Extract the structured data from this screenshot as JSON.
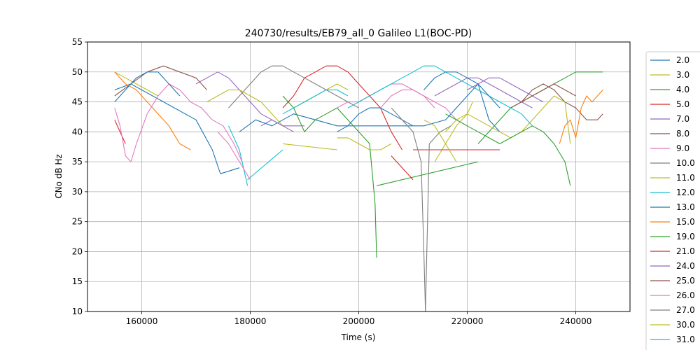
{
  "chart_data": {
    "type": "line",
    "title": "240730/results/EB79_all_0 Galileo L1(BOC-PD)",
    "xlabel": "Time (s)",
    "ylabel": "CNo dB Hz",
    "xlim": [
      150000,
      250000
    ],
    "ylim": [
      10,
      55
    ],
    "xticks": [
      160000,
      180000,
      200000,
      220000,
      240000
    ],
    "yticks": [
      10,
      15,
      20,
      25,
      30,
      35,
      40,
      45,
      50,
      55
    ],
    "grid": true,
    "legend_position": "right",
    "series": [
      {
        "name": "2.0",
        "color": "#1f77b4",
        "segments": [
          {
            "x": [
              155000,
              158000,
              162000,
              166000,
              170000,
              173000,
              174500
            ],
            "y": [
              47,
              48,
              46,
              44,
              42,
              37,
              33
            ]
          },
          {
            "x": [
              174500,
              178000
            ],
            "y": [
              33,
              34
            ]
          },
          {
            "x": [
              178000,
              181000,
              184000,
              188000,
              192000,
              196000,
              200000,
              204000,
              208000,
              212000,
              216000,
              220000,
              222000,
              224000,
              226000
            ],
            "y": [
              40,
              42,
              41,
              43,
              42,
              41,
              41,
              41,
              41,
              41,
              42,
              46,
              48,
              42,
              40
            ]
          }
        ]
      },
      {
        "name": "3.0",
        "color": "#bcbd22",
        "segments": [
          {
            "x": [
              155000,
              157000,
              159000,
              161000,
              163000
            ],
            "y": [
              50,
              49,
              48,
              47,
              46
            ]
          },
          {
            "x": [
              214000,
              216000,
              218000,
              220000,
              221000
            ],
            "y": [
              35,
              38,
              41,
              43,
              45
            ]
          }
        ]
      },
      {
        "name": "4.0",
        "color": "#2ca02c",
        "segments": [
          {
            "x": [
              186000,
              188000,
              190000,
              192000,
              194000,
              196000,
              198000,
              200000,
              202000,
              203000,
              203300
            ],
            "y": [
              46,
              44,
              40,
              42,
              43,
              44,
              42,
              40,
              38,
              28,
              19
            ]
          },
          {
            "x": [
              203300,
              222000
            ],
            "y": [
              31,
              35
            ]
          },
          {
            "x": [
              222000,
              224000,
              226000,
              228000,
              230000,
              232000,
              234000,
              236000,
              238000,
              240000,
              242000,
              244000,
              245000
            ],
            "y": [
              38,
              40,
              42,
              44,
              45,
              46,
              47,
              48,
              49,
              50,
              50,
              50,
              50
            ]
          }
        ]
      },
      {
        "name": "5.0",
        "color": "#d62728",
        "segments": [
          {
            "x": [
              155000,
              156000,
              157000
            ],
            "y": [
              42,
              40,
              38
            ]
          },
          {
            "x": [
              186000,
              188000,
              190000,
              192000,
              194000,
              196000,
              198000,
              200000,
              202000,
              204000,
              206000,
              208000
            ],
            "y": [
              44,
              46,
              49,
              50,
              51,
              51,
              50,
              48,
              46,
              44,
              40,
              37
            ]
          }
        ]
      },
      {
        "name": "7.0",
        "color": "#9467bd",
        "segments": [
          {
            "x": [
              170000,
              172000,
              174000,
              176000,
              178000,
              180000,
              182000,
              184000,
              186000,
              188000,
              190000
            ],
            "y": [
              48,
              49,
              50,
              49,
              47,
              45,
              43,
              42,
              41,
              41,
              41
            ]
          },
          {
            "x": [
              214000,
              216000,
              218000,
              220000,
              222000,
              224000,
              226000,
              228000,
              230000,
              232000
            ],
            "y": [
              46,
              47,
              48,
              49,
              49,
              48,
              47,
              46,
              45,
              44
            ]
          }
        ]
      },
      {
        "name": "8.0",
        "color": "#8c564b",
        "segments": [
          {
            "x": [
              155000,
              158000,
              161000,
              164000,
              167000,
              170000,
              172000
            ],
            "y": [
              46,
              48,
              50,
              51,
              50,
              49,
              47
            ]
          },
          {
            "x": [
              228000,
              230000,
              232000,
              234000,
              236000,
              238000,
              240000,
              242000,
              244000,
              245000
            ],
            "y": [
              44,
              45,
              47,
              48,
              47,
              45,
              44,
              42,
              42,
              43
            ]
          }
        ]
      },
      {
        "name": "9.0",
        "color": "#e377c2",
        "segments": [
          {
            "x": [
              155000,
              156000,
              157000,
              158000,
              159000,
              161000,
              163000,
              165000,
              167000,
              169000,
              171000,
              173000,
              175000,
              177000,
              178500
            ],
            "y": [
              44,
              41,
              36,
              35,
              38,
              43,
              46,
              48,
              47,
              45,
              44,
              42,
              41,
              38,
              35
            ]
          },
          {
            "x": [
              196000,
              198000,
              200000,
              202000,
              204000,
              206000,
              208000,
              210000,
              212000,
              214000,
              216000,
              218000,
              220000
            ],
            "y": [
              44,
              45,
              45,
              46,
              47,
              48,
              48,
              47,
              46,
              45,
              44,
              42,
              41
            ]
          }
        ]
      },
      {
        "name": "10.0",
        "color": "#7f7f7f",
        "segments": [
          {
            "x": [
              176000,
              178000,
              180000,
              182000,
              184000,
              186000,
              188000,
              190000,
              192000,
              194000,
              196000,
              198000,
              200000
            ],
            "y": [
              44,
              46,
              48,
              50,
              51,
              51,
              50,
              49,
              48,
              47,
              46,
              45,
              44
            ]
          }
        ]
      },
      {
        "name": "11.0",
        "color": "#bcbd22",
        "segments": [
          {
            "x": [
              172000,
              174000,
              176000,
              178000,
              180000,
              182000,
              184000,
              186000
            ],
            "y": [
              45,
              46,
              47,
              47,
              46,
              45,
              43,
              41
            ]
          },
          {
            "x": [
              186000,
              196000
            ],
            "y": [
              38,
              37
            ]
          },
          {
            "x": [
              196000,
              198000,
              200000,
              202000,
              204000,
              206000
            ],
            "y": [
              39,
              39,
              38,
              37,
              37,
              38
            ]
          },
          {
            "x": [
              216000,
              218000,
              220000,
              222000,
              224000,
              226000,
              228000,
              230000,
              232000,
              234000,
              236000,
              238000,
              239000
            ],
            "y": [
              40,
              42,
              43,
              42,
              41,
              40,
              39,
              40,
              42,
              44,
              46,
              45,
              38
            ]
          }
        ]
      },
      {
        "name": "12.0",
        "color": "#17becf",
        "segments": [
          {
            "x": [
              176000,
              178000,
              179500
            ],
            "y": [
              41,
              37,
              31
            ]
          },
          {
            "x": [
              179500,
              186000
            ],
            "y": [
              32,
              37
            ]
          },
          {
            "x": [
              198000,
              200000,
              202000,
              204000,
              206000,
              208000,
              210000,
              212000,
              214000,
              216000,
              218000,
              220000,
              222000,
              224000,
              226000,
              228000,
              230000,
              232000
            ],
            "y": [
              44,
              45,
              46,
              47,
              48,
              49,
              50,
              51,
              51,
              50,
              49,
              48,
              47,
              46,
              45,
              44,
              43,
              41
            ]
          }
        ]
      },
      {
        "name": "13.0",
        "color": "#1f77b4",
        "segments": [
          {
            "x": [
              155000,
              157000,
              159000,
              161000,
              163000,
              165000,
              167000
            ],
            "y": [
              45,
              47,
              49,
              50,
              50,
              48,
              46
            ]
          },
          {
            "x": [
              196000,
              198000,
              200000,
              202000,
              204000,
              206000,
              208000,
              210000
            ],
            "y": [
              40,
              41,
              43,
              44,
              44,
              43,
              42,
              41
            ]
          },
          {
            "x": [
              212000,
              214000,
              216000,
              218000,
              220000,
              222000,
              224000,
              226000
            ],
            "y": [
              47,
              49,
              50,
              50,
              49,
              48,
              46,
              44
            ]
          }
        ]
      },
      {
        "name": "15.0",
        "color": "#ff7f0e",
        "segments": [
          {
            "x": [
              155000,
              157000,
              159000,
              161000,
              163000,
              165000,
              167000,
              169000
            ],
            "y": [
              50,
              48,
              47,
              45,
              43,
              41,
              38,
              37
            ]
          },
          {
            "x": [
              237000,
              238000,
              239000,
              240000,
              241000,
              242000,
              243000,
              244000,
              245000
            ],
            "y": [
              38,
              41,
              42,
              39,
              44,
              46,
              45,
              46,
              47
            ]
          }
        ]
      },
      {
        "name": "19.0",
        "color": "#2ca02c",
        "segments": [
          {
            "x": [
              216000,
              218000,
              220000,
              222000,
              224000,
              226000,
              228000,
              230000,
              232000,
              234000,
              236000,
              238000,
              239000
            ],
            "y": [
              43,
              42,
              41,
              40,
              39,
              38,
              39,
              40,
              41,
              40,
              38,
              35,
              31
            ]
          }
        ]
      },
      {
        "name": "21.0",
        "color": "#d62728",
        "segments": [
          {
            "x": [
              206000,
              208000,
              210000
            ],
            "y": [
              36,
              34,
              32
            ]
          },
          {
            "x": [
              210000,
              226000
            ],
            "y": [
              37,
              37
            ]
          }
        ]
      },
      {
        "name": "24.0",
        "color": "#9467bd",
        "segments": [
          {
            "x": [
              182000,
              184000,
              186000,
              188000
            ],
            "y": [
              41,
              42,
              41,
              40
            ]
          },
          {
            "x": [
              220000,
              222000,
              224000,
              226000,
              228000,
              230000,
              232000,
              234000
            ],
            "y": [
              47,
              48,
              49,
              49,
              48,
              47,
              46,
              45
            ]
          }
        ]
      },
      {
        "name": "25.0",
        "color": "#8c564b",
        "segments": [
          {
            "x": [
              230000,
              232000,
              234000,
              236000,
              238000,
              240000
            ],
            "y": [
              45,
              46,
              47,
              48,
              47,
              46
            ]
          }
        ]
      },
      {
        "name": "26.0",
        "color": "#e377c2",
        "segments": [
          {
            "x": [
              174000,
              176000,
              178000,
              180000
            ],
            "y": [
              40,
              38,
              35,
              32
            ]
          },
          {
            "x": [
              204000,
              206000,
              208000,
              210000,
              212000,
              214000
            ],
            "y": [
              44,
              46,
              47,
              47,
              46,
              44
            ]
          }
        ]
      },
      {
        "name": "27.0",
        "color": "#7f7f7f",
        "segments": [
          {
            "x": [
              206000,
              208000,
              210000,
              211500,
              212000,
              212300
            ],
            "y": [
              44,
              42,
              40,
              35,
              20,
              10
            ]
          },
          {
            "x": [
              212300,
              213000,
              215000,
              217000
            ],
            "y": [
              10,
              38,
              40,
              41
            ]
          }
        ]
      },
      {
        "name": "30.0",
        "color": "#bcbd22",
        "segments": [
          {
            "x": [
              188000,
              190000,
              192000,
              194000,
              196000,
              198000
            ],
            "y": [
              44,
              45,
              46,
              47,
              48,
              47
            ]
          },
          {
            "x": [
              212000,
              214000,
              216000,
              218000
            ],
            "y": [
              42,
              41,
              38,
              35
            ]
          }
        ]
      },
      {
        "name": "31.0",
        "color": "#17becf",
        "segments": [
          {
            "x": [
              186000,
              188000,
              190000,
              192000,
              194000,
              196000,
              198000
            ],
            "y": [
              43,
              44,
              45,
              46,
              47,
              47,
              46
            ]
          }
        ]
      }
    ]
  }
}
